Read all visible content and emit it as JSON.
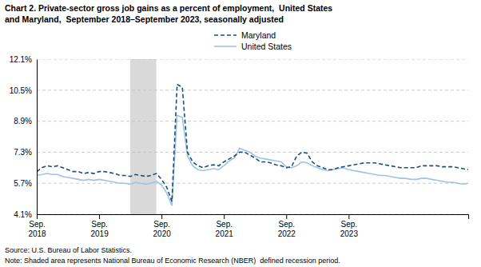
{
  "chart_data": {
    "type": "line",
    "title": "Chart 2. Private-sector gross job gains as a percent of employment,  United States",
    "subtitle": "and Maryland,  September 2018–September 2023, seasonally adjusted",
    "source": "Source: U.S. Bureau of Labor Statistics.",
    "note": "Note: Shaded area represents National Bureau of Economic Research (NBER)  defined recession period.",
    "categories": [
      "Sep.\n2018",
      null,
      null,
      null,
      null,
      null,
      null,
      null,
      null,
      null,
      null,
      null,
      "Sep.\n2019",
      null,
      null,
      null,
      null,
      null,
      null,
      null,
      null,
      null,
      null,
      null,
      "Sep.\n2020",
      null,
      null,
      null,
      null,
      null,
      null,
      null,
      null,
      null,
      null,
      null,
      "Sep.\n2021",
      null,
      null,
      null,
      null,
      null,
      null,
      null,
      null,
      null,
      null,
      null,
      "Sep.\n2022",
      null,
      null,
      null,
      null,
      null,
      null,
      null,
      null,
      null,
      null,
      null,
      "Sep.\n2023",
      null,
      null,
      null,
      null,
      null,
      null,
      null,
      null,
      null,
      null,
      null,
      null,
      null,
      null,
      null,
      null,
      null,
      null,
      null,
      null,
      null,
      null,
      null
    ],
    "series": [
      {
        "name": "Maryland",
        "color": "#1f4e79",
        "line_style": "dashed",
        "values": [
          6.3,
          6.5,
          6.6,
          6.55,
          6.6,
          6.5,
          6.4,
          6.3,
          6.3,
          6.2,
          6.25,
          6.2,
          6.3,
          6.3,
          6.25,
          6.2,
          6.1,
          6.1,
          6.05,
          6.15,
          6.1,
          6.05,
          6.1,
          6.2,
          5.9,
          5.5,
          4.75,
          10.8,
          10.65,
          7.3,
          6.8,
          6.6,
          6.5,
          6.6,
          6.65,
          6.6,
          6.8,
          6.95,
          7.1,
          7.3,
          7.3,
          7.15,
          7.0,
          6.8,
          6.8,
          6.75,
          6.65,
          6.6,
          6.5,
          6.55,
          7.1,
          7.3,
          7.25,
          6.8,
          6.6,
          6.5,
          6.4,
          6.4,
          6.5,
          6.55,
          6.6,
          6.65,
          6.7,
          6.75,
          6.75,
          6.75,
          6.7,
          6.65,
          6.6,
          6.55,
          6.5,
          6.5,
          6.5,
          6.5,
          6.6,
          6.6,
          6.6,
          6.6,
          6.55,
          6.55,
          6.55,
          6.5,
          6.45,
          6.4
        ]
      },
      {
        "name": "United States",
        "color": "#9dc3e6",
        "line_style": "solid",
        "values": [
          6.1,
          6.15,
          6.2,
          6.15,
          6.15,
          6.05,
          6.0,
          5.95,
          5.9,
          5.85,
          5.9,
          5.85,
          5.9,
          5.85,
          5.8,
          5.75,
          5.7,
          5.7,
          5.65,
          5.75,
          5.7,
          5.65,
          5.7,
          5.8,
          5.6,
          5.2,
          4.55,
          9.2,
          9.1,
          7.1,
          6.6,
          6.4,
          6.35,
          6.4,
          6.45,
          6.4,
          6.6,
          6.85,
          7.0,
          7.5,
          7.4,
          7.3,
          7.1,
          7.0,
          6.95,
          6.9,
          6.85,
          6.8,
          6.55,
          6.5,
          6.6,
          6.8,
          6.75,
          6.6,
          6.5,
          6.4,
          6.35,
          6.4,
          6.45,
          6.5,
          6.4,
          6.35,
          6.3,
          6.25,
          6.2,
          6.15,
          6.1,
          6.1,
          6.05,
          6.0,
          5.95,
          5.95,
          5.9,
          5.9,
          5.95,
          5.95,
          5.9,
          5.85,
          5.8,
          5.75,
          5.75,
          5.7,
          5.65,
          5.7
        ]
      }
    ],
    "ylim": [
      4.1,
      12.1
    ],
    "yticks": [
      {
        "value": 4.1,
        "label": "4.1%"
      },
      {
        "value": 5.7,
        "label": "5.7%"
      },
      {
        "value": 7.3,
        "label": "7.3%"
      },
      {
        "value": 8.9,
        "label": "8.9%"
      },
      {
        "value": 10.5,
        "label": "10.5%"
      },
      {
        "value": 12.1,
        "label": "12.1%"
      }
    ],
    "grid": true,
    "shaded": {
      "from": 18,
      "to": 23,
      "color": "#d9d9d9"
    }
  }
}
